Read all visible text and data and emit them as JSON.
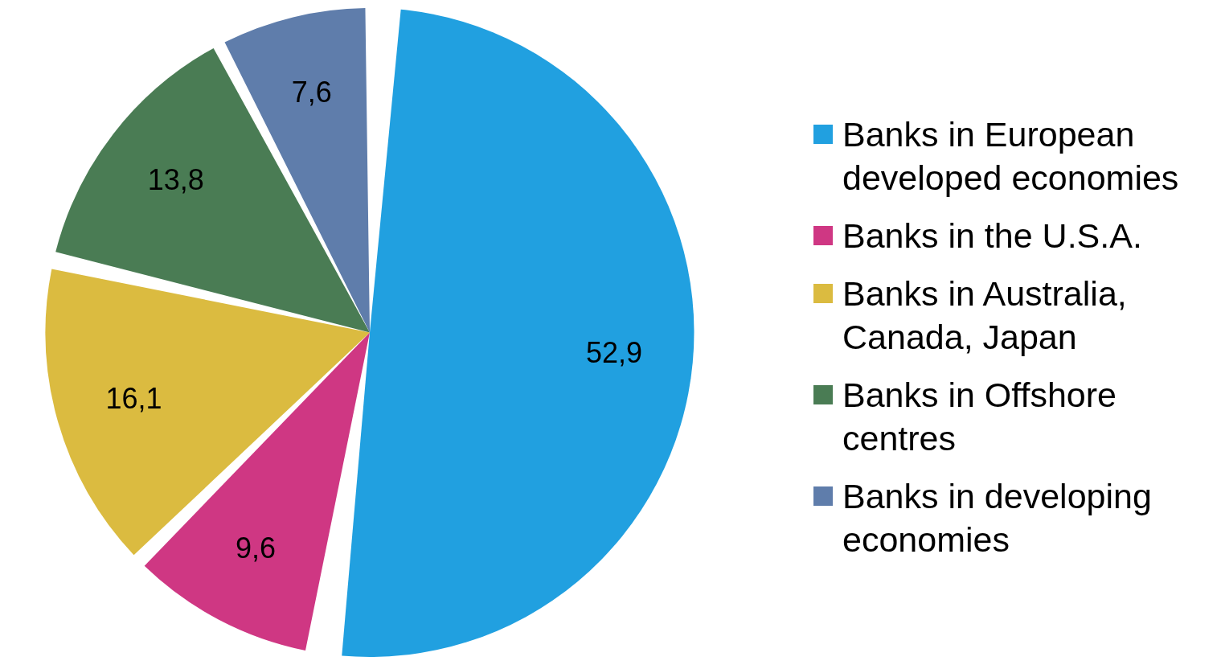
{
  "chart_data": {
    "type": "pie",
    "categories": [
      "Banks in European developed economies",
      "Banks in the U.S.A.",
      "Banks in Australia, Canada, Japan",
      "Banks in Offshore centres",
      "Banks in developing economies"
    ],
    "values": [
      52.9,
      9.6,
      16.1,
      13.8,
      7.6
    ],
    "value_labels": [
      "52,9",
      "9,6",
      "16,1",
      "13,8",
      "7,6"
    ],
    "colors": [
      "#21a0e0",
      "#cf3783",
      "#dbbb40",
      "#4a7c54",
      "#5f7dab"
    ],
    "legend": "right"
  }
}
